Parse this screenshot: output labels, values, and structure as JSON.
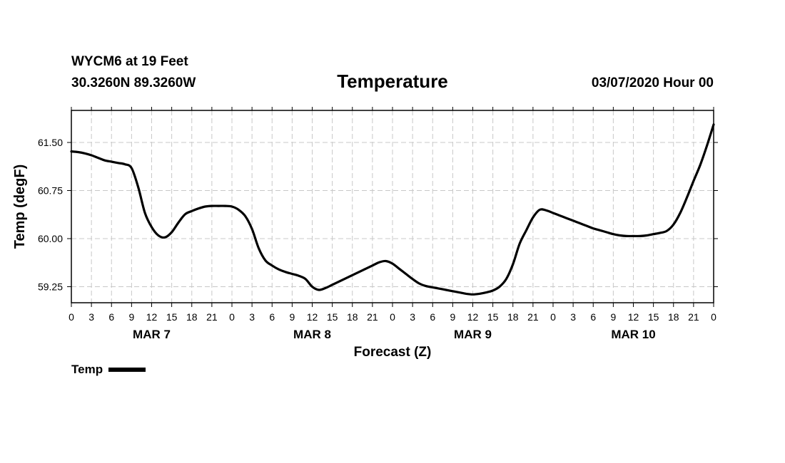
{
  "header": {
    "station": "WYCM6 at 19 Feet",
    "coords": "30.3260N 89.3260W",
    "title": "Temperature",
    "datetime": "03/07/2020 Hour 00"
  },
  "legend": {
    "label": "Temp"
  },
  "chart_data": {
    "type": "line",
    "title": "Temperature",
    "xlabel": "Forecast (Z)",
    "ylabel": "Temp (degF)",
    "xlim": [
      0,
      96
    ],
    "ylim": [
      59.0,
      62.0
    ],
    "grid": true,
    "x_ticks": [
      0,
      3,
      6,
      9,
      12,
      15,
      18,
      21,
      24,
      27,
      30,
      33,
      36,
      39,
      42,
      45,
      48,
      51,
      54,
      57,
      60,
      63,
      66,
      69,
      72,
      75,
      78,
      81,
      84,
      87,
      90,
      93,
      96
    ],
    "x_tick_labels": [
      "0",
      "3",
      "6",
      "9",
      "12",
      "15",
      "18",
      "21",
      "0",
      "3",
      "6",
      "9",
      "12",
      "15",
      "18",
      "21",
      "0",
      "3",
      "6",
      "9",
      "12",
      "15",
      "18",
      "21",
      "0",
      "3",
      "6",
      "9",
      "12",
      "15",
      "18",
      "21",
      "0"
    ],
    "day_labels": [
      {
        "label": "MAR 7",
        "x": 12
      },
      {
        "label": "MAR 8",
        "x": 36
      },
      {
        "label": "MAR 9",
        "x": 60
      },
      {
        "label": "MAR 10",
        "x": 84
      }
    ],
    "y_ticks": [
      59.25,
      60.0,
      60.75,
      61.5
    ],
    "y_tick_labels": [
      "59.25",
      "60.00",
      "60.75",
      "61.50"
    ],
    "legend": "bottom-left",
    "series": [
      {
        "name": "Temp",
        "color": "#000000",
        "x": [
          0,
          1,
          2,
          3,
          4,
          5,
          6,
          7,
          8,
          9,
          10,
          11,
          12,
          13,
          14,
          15,
          16,
          17,
          18,
          19,
          20,
          21,
          22,
          23,
          24,
          25,
          26,
          27,
          28,
          29,
          30,
          31,
          32,
          33,
          34,
          35,
          36,
          37,
          38,
          39,
          40,
          41,
          42,
          43,
          44,
          45,
          46,
          47,
          48,
          49,
          50,
          51,
          52,
          53,
          54,
          55,
          56,
          57,
          58,
          59,
          60,
          61,
          62,
          63,
          64,
          65,
          66,
          67,
          68,
          69,
          70,
          71,
          72,
          73,
          74,
          75,
          76,
          77,
          78,
          79,
          80,
          81,
          82,
          83,
          84,
          85,
          86,
          87,
          88,
          89,
          90,
          91,
          92,
          93,
          94,
          95,
          96
        ],
        "values": [
          61.36,
          61.35,
          61.33,
          61.3,
          61.26,
          61.22,
          61.2,
          61.18,
          61.16,
          61.1,
          60.8,
          60.4,
          60.18,
          60.05,
          60.02,
          60.1,
          60.25,
          60.38,
          60.43,
          60.47,
          60.5,
          60.51,
          60.51,
          60.51,
          60.5,
          60.45,
          60.35,
          60.15,
          59.85,
          59.66,
          59.58,
          59.52,
          59.48,
          59.45,
          59.42,
          59.37,
          59.25,
          59.2,
          59.23,
          59.28,
          59.33,
          59.38,
          59.43,
          59.48,
          59.53,
          59.58,
          59.63,
          59.65,
          59.61,
          59.53,
          59.45,
          59.37,
          59.3,
          59.26,
          59.24,
          59.22,
          59.2,
          59.18,
          59.16,
          59.14,
          59.13,
          59.14,
          59.16,
          59.19,
          59.25,
          59.37,
          59.6,
          59.92,
          60.13,
          60.33,
          60.45,
          60.44,
          60.4,
          60.36,
          60.32,
          60.28,
          60.24,
          60.2,
          60.16,
          60.13,
          60.1,
          60.07,
          60.05,
          60.04,
          60.04,
          60.04,
          60.05,
          60.07,
          60.09,
          60.12,
          60.22,
          60.4,
          60.64,
          60.9,
          61.15,
          61.45,
          61.78
        ]
      }
    ]
  }
}
